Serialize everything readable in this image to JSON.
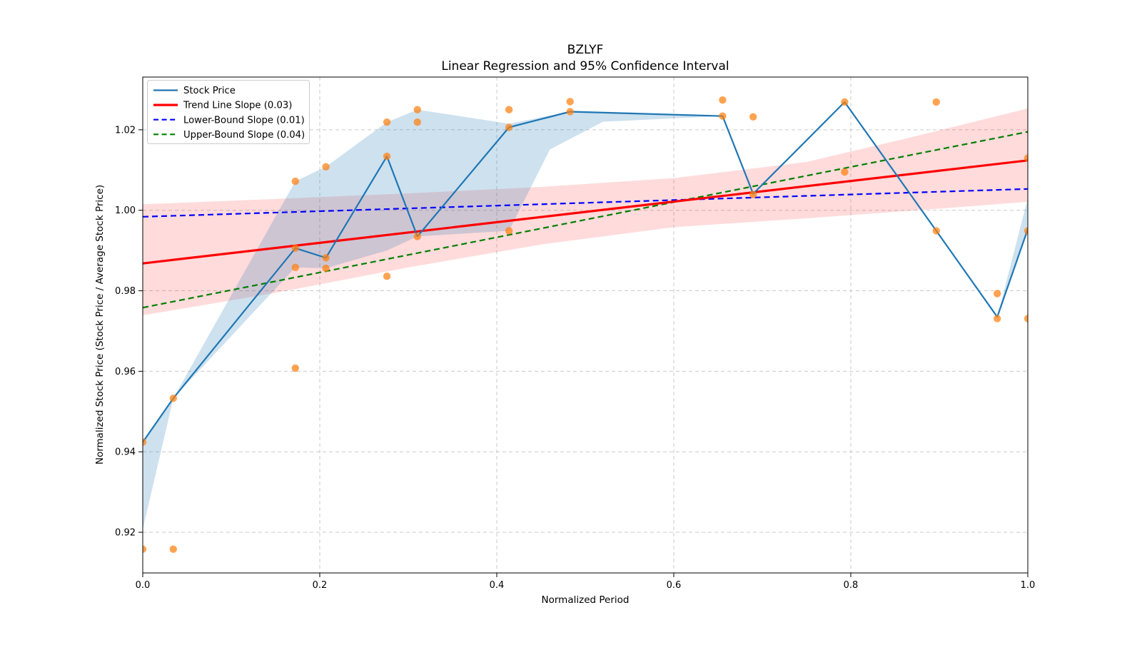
{
  "figure": {
    "title_line1": "BZLYF",
    "title_line2": "Linear Regression and 95% Confidence Interval",
    "xlabel": "Normalized Period",
    "ylabel": "Normalized Stock Price (Stock Price / Average Stock Price)",
    "background": "#ffffff"
  },
  "legend": {
    "items": [
      {
        "label": "Stock Price",
        "color": "#1f77b4",
        "dash": "solid",
        "width": 2.2
      },
      {
        "label": "Trend Line Slope (0.03)",
        "color": "#ff0000",
        "dash": "solid",
        "width": 3.2
      },
      {
        "label": "Lower-Bound Slope (0.01)",
        "color": "#0000ff",
        "dash": "dashed",
        "width": 2.2
      },
      {
        "label": "Upper-Bound Slope (0.04)",
        "color": "#008000",
        "dash": "dashed",
        "width": 2.2
      }
    ]
  },
  "chart_data": {
    "type": "line",
    "title": "BZLYF — Linear Regression and 95% Confidence Interval",
    "xlabel": "Normalized Period",
    "ylabel": "Normalized Stock Price (Stock Price / Average Stock Price)",
    "xlim": [
      0,
      1
    ],
    "ylim": [
      0.9099,
      1.0331
    ],
    "grid": true,
    "legend_position": "upper left",
    "x_ticks": [
      0.0,
      0.2,
      0.4,
      0.6,
      0.8,
      1.0
    ],
    "x_tick_labels": [
      "0.0",
      "0.2",
      "0.4",
      "0.6",
      "0.8",
      "1.0"
    ],
    "y_ticks": [
      0.92,
      0.94,
      0.96,
      0.98,
      1.0,
      1.02
    ],
    "y_tick_labels": [
      "0.92",
      "0.94",
      "0.96",
      "0.98",
      "1.00",
      "1.02"
    ],
    "series": [
      {
        "name": "Stock Price",
        "type": "line",
        "color": "#1f77b4",
        "width": 2.2,
        "dash": false,
        "points": [
          [
            0.0,
            0.9424
          ],
          [
            0.0345,
            0.9533
          ],
          [
            0.1724,
            0.9906
          ],
          [
            0.2069,
            0.9882
          ],
          [
            0.2759,
            1.0134
          ],
          [
            0.3103,
            0.9935
          ],
          [
            0.4138,
            1.0206
          ],
          [
            0.4828,
            1.0245
          ],
          [
            0.6552,
            1.0234
          ],
          [
            0.6897,
            1.0041
          ],
          [
            0.7931,
            1.0269
          ],
          [
            0.8966,
            0.9949
          ],
          [
            0.9655,
            0.9735
          ],
          [
            1.0,
            0.9953
          ]
        ]
      },
      {
        "name": "Trend Line Slope (0.03)",
        "type": "line",
        "color": "#ff0000",
        "width": 3.2,
        "dash": false,
        "points": [
          [
            0.0,
            0.9868
          ],
          [
            1.0,
            1.0124
          ]
        ]
      },
      {
        "name": "Lower-Bound Slope (0.01)",
        "type": "line",
        "color": "#0000ff",
        "width": 2.2,
        "dash": true,
        "points": [
          [
            0.0,
            0.9984
          ],
          [
            1.0,
            1.0053
          ]
        ]
      },
      {
        "name": "Upper-Bound Slope (0.04)",
        "type": "line",
        "color": "#008000",
        "width": 2.2,
        "dash": true,
        "points": [
          [
            0.0,
            0.9758
          ],
          [
            1.0,
            1.0195
          ]
        ]
      },
      {
        "name": "Stock Price Observations",
        "type": "scatter",
        "color": "#ff7f0e",
        "radius": 5.2,
        "opacity": 0.72,
        "points": [
          [
            0.0,
            0.9424
          ],
          [
            0.0,
            0.9158
          ],
          [
            0.0345,
            0.9533
          ],
          [
            0.0345,
            0.9158
          ],
          [
            0.1724,
            1.0072
          ],
          [
            0.1724,
            0.9906
          ],
          [
            0.1724,
            0.9858
          ],
          [
            0.1724,
            0.9608
          ],
          [
            0.2069,
            1.0108
          ],
          [
            0.2069,
            0.9882
          ],
          [
            0.2069,
            0.9856
          ],
          [
            0.2759,
            1.0219
          ],
          [
            0.2759,
            1.0134
          ],
          [
            0.2759,
            0.9836
          ],
          [
            0.3103,
            1.025
          ],
          [
            0.3103,
            1.0219
          ],
          [
            0.3103,
            0.9935
          ],
          [
            0.4138,
            1.025
          ],
          [
            0.4138,
            1.0206
          ],
          [
            0.4138,
            0.9949
          ],
          [
            0.4828,
            1.027
          ],
          [
            0.4828,
            1.0245
          ],
          [
            0.6552,
            1.0274
          ],
          [
            0.6552,
            1.0234
          ],
          [
            0.6897,
            1.0232
          ],
          [
            0.6897,
            1.0039
          ],
          [
            0.7931,
            1.0269
          ],
          [
            0.7931,
            1.0095
          ],
          [
            0.8966,
            1.0269
          ],
          [
            0.8966,
            0.9949
          ],
          [
            0.9655,
            0.9793
          ],
          [
            0.9655,
            0.9731
          ],
          [
            1.0,
            1.013
          ],
          [
            1.0,
            0.9949
          ],
          [
            1.0,
            0.9731
          ]
        ]
      }
    ],
    "bands": [
      {
        "name": "confidence-interval-band",
        "color": "rgba(255,0,0,0.14)",
        "upper": [
          [
            0.0,
            1.0015
          ],
          [
            0.15,
            1.0028
          ],
          [
            0.3,
            1.0042
          ],
          [
            0.45,
            1.0058
          ],
          [
            0.6,
            1.008
          ],
          [
            0.75,
            1.012
          ],
          [
            0.875,
            1.0185
          ],
          [
            1.0,
            1.0253
          ]
        ],
        "lower": [
          [
            0.0,
            0.9739
          ],
          [
            0.15,
            0.9795
          ],
          [
            0.3,
            0.9858
          ],
          [
            0.45,
            0.9915
          ],
          [
            0.6,
            0.9958
          ],
          [
            0.75,
            0.998
          ],
          [
            0.875,
            1.0
          ],
          [
            1.0,
            1.0021
          ]
        ]
      },
      {
        "name": "stock-price-range-band",
        "color": "rgba(31,119,180,0.22)",
        "upper": [
          [
            0.0,
            0.9424
          ],
          [
            0.0345,
            0.9533
          ],
          [
            0.1724,
            1.0072
          ],
          [
            0.2069,
            1.0108
          ],
          [
            0.2759,
            1.0219
          ],
          [
            0.3103,
            1.025
          ],
          [
            0.4138,
            1.0215
          ],
          [
            0.4828,
            1.0245
          ],
          [
            0.6552,
            1.0234
          ]
        ],
        "lower": [
          [
            0.0,
            0.9207
          ],
          [
            0.0345,
            0.9533
          ],
          [
            0.1724,
            0.9858
          ],
          [
            0.2069,
            0.9856
          ],
          [
            0.2759,
            0.99
          ],
          [
            0.3103,
            0.9935
          ],
          [
            0.4138,
            0.9949
          ],
          [
            0.46,
            1.0151
          ],
          [
            0.52,
            1.022
          ],
          [
            0.6552,
            1.0234
          ]
        ]
      },
      {
        "name": "stock-price-range-band-right",
        "color": "rgba(31,119,180,0.22)",
        "upper": [
          [
            0.9655,
            0.9735
          ],
          [
            1.0,
            1.003
          ]
        ],
        "lower": [
          [
            0.9655,
            0.9735
          ],
          [
            1.0,
            0.9953
          ]
        ]
      }
    ]
  },
  "style": {
    "grid_color": "#c9c9c9",
    "spine_color": "#000000",
    "legend_border": "#cccccc"
  }
}
